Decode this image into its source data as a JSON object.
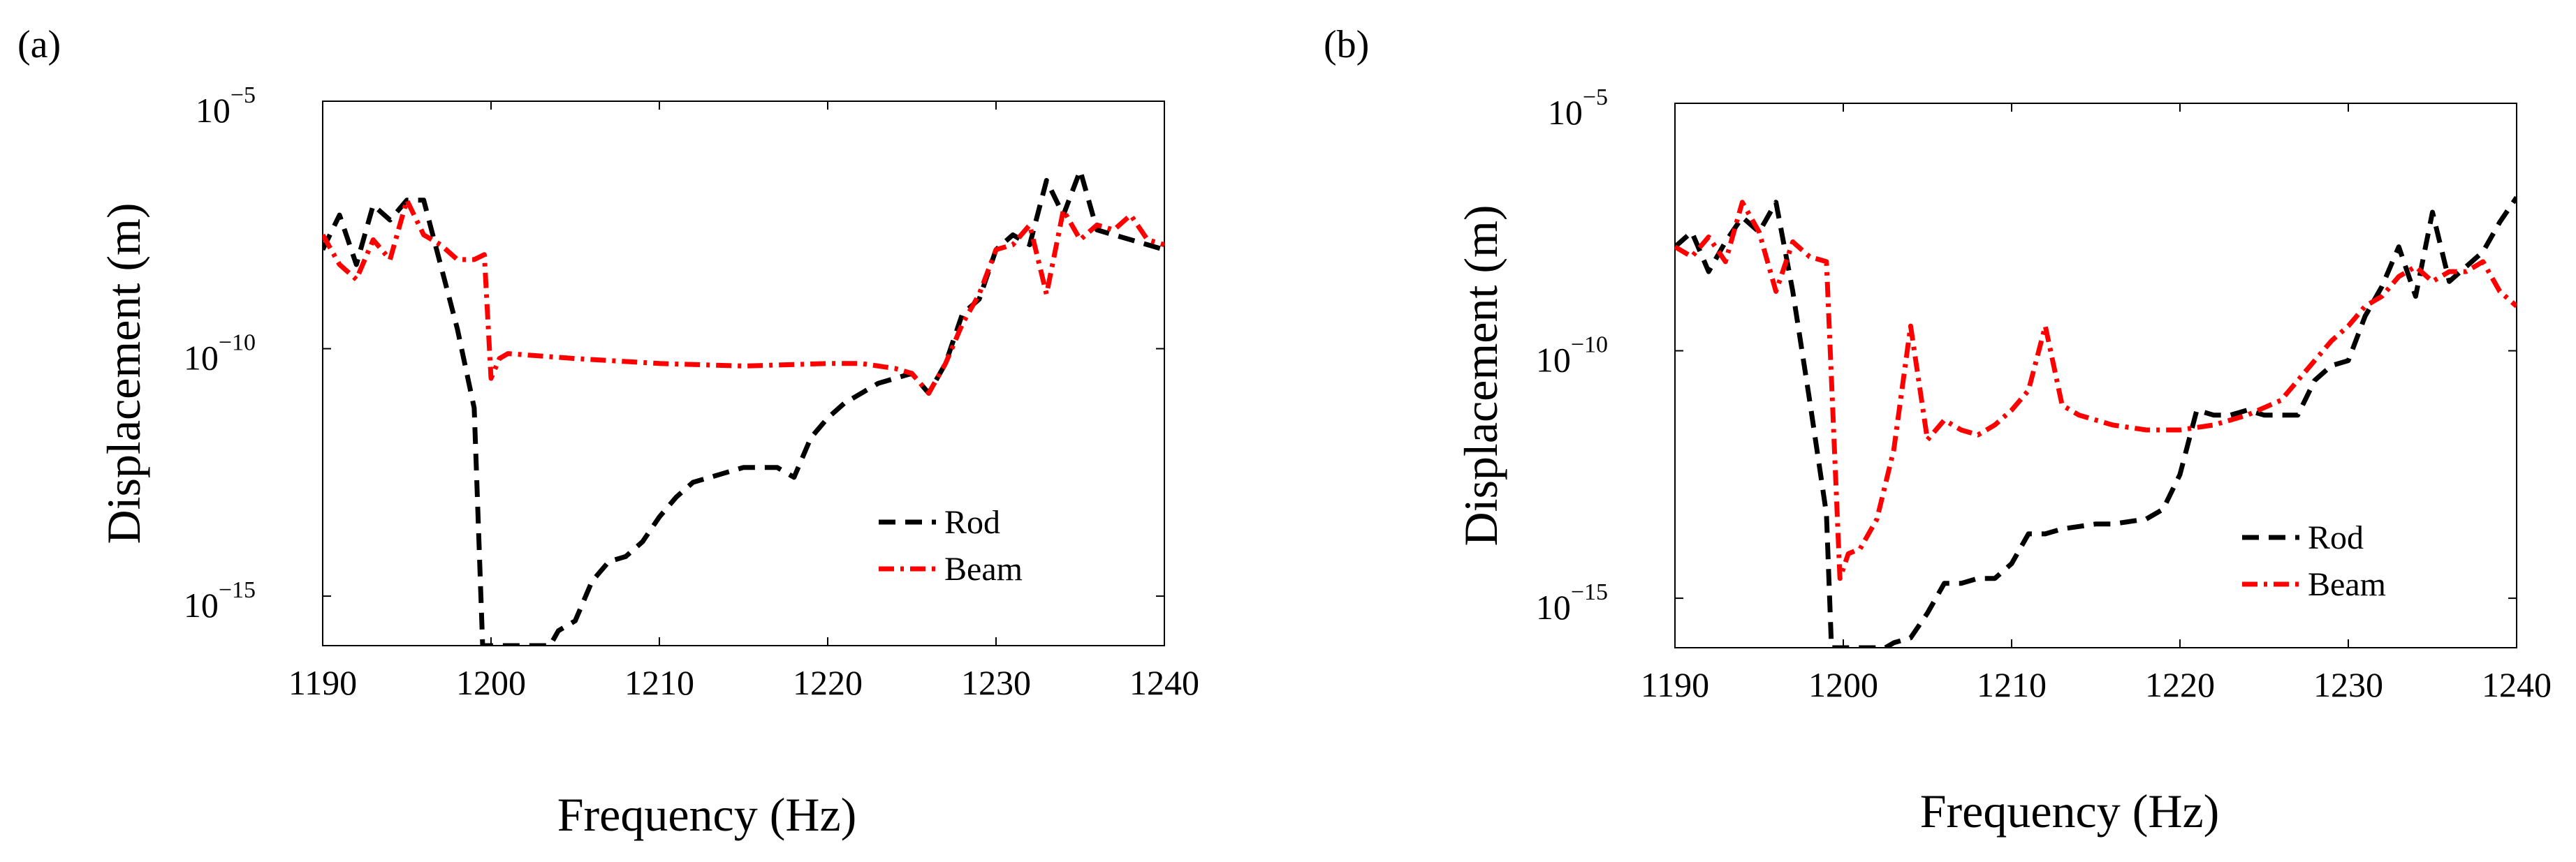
{
  "chart_data": [
    {
      "panel_label": "(a)",
      "type": "line",
      "xlabel": "Frequency (Hz)",
      "ylabel": "Displacement (m)",
      "yscale": "log",
      "xlim": [
        1190,
        1240
      ],
      "ylim": [
        1e-16,
        1e-05
      ],
      "xticks": [
        "1190",
        "1200",
        "1210",
        "1220",
        "1230",
        "1240"
      ],
      "yticks": [
        {
          "base": "10",
          "exponent": "−5",
          "value": 1e-05
        },
        {
          "base": "10",
          "exponent": "−10",
          "value": 1e-10
        },
        {
          "base": "10",
          "exponent": "−15",
          "value": 1e-15
        }
      ],
      "legend_position": "lower-right",
      "series": [
        {
          "name": "Rod",
          "color": "#000000",
          "style": "dashed",
          "x": [
            1190,
            1191,
            1192,
            1193,
            1194,
            1195,
            1196,
            1197,
            1198,
            1199,
            1199.5,
            1203.5,
            1204,
            1205,
            1206,
            1207,
            1208,
            1209,
            1210,
            1211,
            1212,
            1213,
            1214,
            1215,
            1216,
            1217,
            1218,
            1219,
            1220,
            1221,
            1222,
            1223,
            1224,
            1225,
            1226,
            1227,
            1228,
            1229,
            1230,
            1231,
            1232,
            1233,
            1234,
            1235,
            1236,
            1237,
            1238,
            1239,
            1240
          ],
          "y": [
            -8,
            -7.3,
            -8.3,
            -7.1,
            -7.4,
            -7.0,
            -7.0,
            -8.3,
            -9.6,
            -11.2,
            -16,
            -16,
            -15.7,
            -15.5,
            -14.7,
            -14.3,
            -14.2,
            -13.9,
            -13.4,
            -13.0,
            -12.7,
            -12.6,
            -12.5,
            -12.4,
            -12.4,
            -12.4,
            -12.6,
            -11.8,
            -11.4,
            -11.1,
            -10.9,
            -10.7,
            -10.6,
            -10.5,
            -10.9,
            -10.3,
            -9.3,
            -9.0,
            -8.0,
            -7.7,
            -7.9,
            -6.6,
            -7.3,
            -6.4,
            -7.6,
            -7.7,
            -7.8,
            -7.9,
            -8.0
          ]
        },
        {
          "name": "Beam",
          "color": "#ff0000",
          "style": "dashdot",
          "x": [
            1190,
            1190.5,
            1191,
            1192,
            1193,
            1194,
            1195,
            1196,
            1197,
            1198,
            1199,
            1199.6,
            1200,
            1200.5,
            1201,
            1205,
            1210,
            1215,
            1220,
            1222,
            1224,
            1225,
            1226,
            1227,
            1228,
            1229,
            1230,
            1231,
            1232,
            1233,
            1234,
            1235,
            1236,
            1237,
            1238,
            1239,
            1240
          ],
          "y": [
            -7.7,
            -8.0,
            -8.3,
            -8.6,
            -7.8,
            -8.2,
            -7.0,
            -7.7,
            -7.9,
            -8.2,
            -8.2,
            -8.1,
            -10.6,
            -10.2,
            -10.1,
            -10.2,
            -10.3,
            -10.35,
            -10.3,
            -10.3,
            -10.4,
            -10.5,
            -10.9,
            -10.3,
            -9.5,
            -8.9,
            -8.0,
            -7.9,
            -7.5,
            -8.9,
            -7.2,
            -7.8,
            -7.5,
            -7.6,
            -7.3,
            -7.8,
            -7.9
          ]
        }
      ]
    },
    {
      "panel_label": "(b)",
      "type": "line",
      "xlabel": "Frequency (Hz)",
      "ylabel": "Displacement (m)",
      "yscale": "log",
      "xlim": [
        1190,
        1240
      ],
      "ylim": [
        1e-16,
        1e-05
      ],
      "xticks": [
        "1190",
        "1200",
        "1210",
        "1220",
        "1230",
        "1240"
      ],
      "yticks": [
        {
          "base": "10",
          "exponent": "−5",
          "value": 1e-05
        },
        {
          "base": "10",
          "exponent": "−10",
          "value": 1e-10
        },
        {
          "base": "10",
          "exponent": "−15",
          "value": 1e-15
        }
      ],
      "legend_position": "lower-right",
      "series": [
        {
          "name": "Rod",
          "color": "#000000",
          "style": "dashed",
          "x": [
            1190,
            1191,
            1192,
            1193,
            1194,
            1195,
            1196,
            1197,
            1198,
            1199,
            1199.3,
            1202.5,
            1203,
            1204,
            1205,
            1206,
            1207,
            1208,
            1209,
            1210,
            1211,
            1212,
            1213,
            1214,
            1215,
            1216,
            1217,
            1218,
            1219,
            1220,
            1221,
            1222,
            1223,
            1224,
            1225,
            1226,
            1227,
            1228,
            1229,
            1230,
            1231,
            1232,
            1233,
            1234,
            1235,
            1236,
            1237,
            1238,
            1239,
            1240
          ],
          "y": [
            -7.9,
            -7.6,
            -8.4,
            -7.8,
            -7.3,
            -7.6,
            -7.0,
            -8.8,
            -11.0,
            -13.3,
            -16,
            -16,
            -15.9,
            -15.8,
            -15.3,
            -14.7,
            -14.7,
            -14.6,
            -14.6,
            -14.3,
            -13.7,
            -13.7,
            -13.6,
            -13.55,
            -13.5,
            -13.5,
            -13.45,
            -13.4,
            -13.2,
            -12.5,
            -11.2,
            -11.3,
            -11.3,
            -11.2,
            -11.3,
            -11.3,
            -11.3,
            -10.6,
            -10.3,
            -10.2,
            -9.3,
            -8.7,
            -7.9,
            -8.9,
            -7.2,
            -8.6,
            -8.3,
            -8.0,
            -7.4,
            -6.9
          ]
        },
        {
          "name": "Beam",
          "color": "#ff0000",
          "style": "dashdot",
          "x": [
            1190,
            1191,
            1192,
            1193,
            1194,
            1195,
            1196,
            1197,
            1198,
            1199,
            1199.8,
            1200.3,
            1201,
            1202,
            1203,
            1204,
            1205,
            1206,
            1207,
            1208,
            1209,
            1210,
            1211,
            1212,
            1213,
            1214,
            1215,
            1216,
            1218,
            1220,
            1222,
            1224,
            1226,
            1227,
            1228,
            1229,
            1230,
            1231,
            1232,
            1233,
            1234,
            1235,
            1236,
            1237,
            1238,
            1239,
            1240
          ],
          "y": [
            -7.9,
            -8.1,
            -7.7,
            -8.2,
            -7.0,
            -7.6,
            -8.8,
            -7.8,
            -8.1,
            -8.2,
            -14.6,
            -14.1,
            -14.0,
            -13.4,
            -12.0,
            -9.5,
            -11.8,
            -11.4,
            -11.6,
            -11.7,
            -11.5,
            -11.2,
            -10.8,
            -9.5,
            -11.1,
            -11.3,
            -11.4,
            -11.5,
            -11.6,
            -11.6,
            -11.5,
            -11.3,
            -11.0,
            -10.6,
            -10.2,
            -9.8,
            -9.5,
            -9.1,
            -8.9,
            -8.5,
            -8.3,
            -8.6,
            -8.4,
            -8.4,
            -8.2,
            -8.8,
            -9.1
          ]
        }
      ]
    }
  ]
}
